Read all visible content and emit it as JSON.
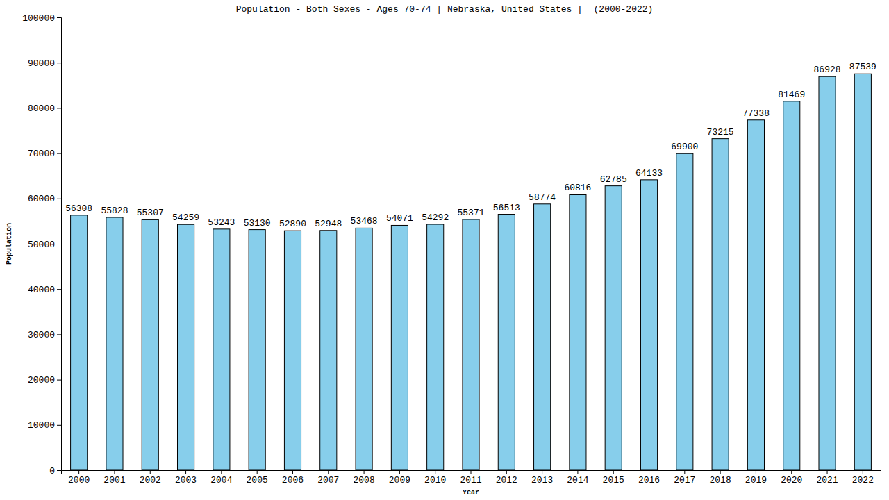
{
  "chart_data": {
    "type": "bar",
    "title": "Population - Both Sexes - Ages 70-74 | Nebraska, United States |  (2000-2022)",
    "x_label": "Year",
    "y_label": "Population",
    "categories": [
      "2000",
      "2001",
      "2002",
      "2003",
      "2004",
      "2005",
      "2006",
      "2007",
      "2008",
      "2009",
      "2010",
      "2011",
      "2012",
      "2013",
      "2014",
      "2015",
      "2016",
      "2017",
      "2018",
      "2019",
      "2020",
      "2021",
      "2022"
    ],
    "values": [
      56308,
      55828,
      55307,
      54259,
      53243,
      53130,
      52890,
      52948,
      53468,
      54071,
      54292,
      55371,
      56513,
      58774,
      60816,
      62785,
      64133,
      69900,
      73215,
      77338,
      81469,
      86928,
      87539
    ],
    "color": "#87ceeb",
    "ylim": [
      0,
      100000
    ],
    "yticks": [
      0,
      10000,
      20000,
      30000,
      40000,
      50000,
      60000,
      70000,
      80000,
      90000,
      100000
    ],
    "grid": false,
    "data_labels": true
  }
}
